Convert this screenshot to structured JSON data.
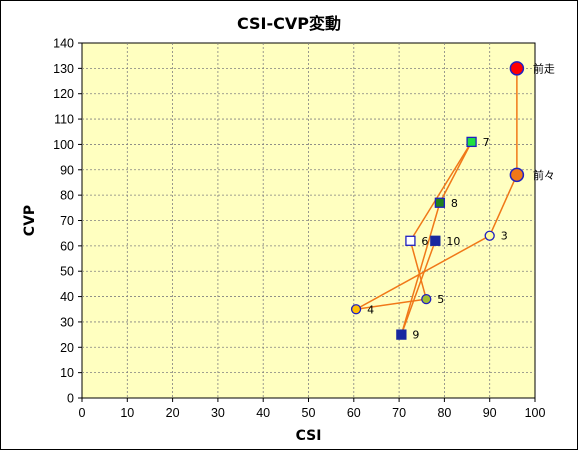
{
  "chart_data": {
    "type": "scatter",
    "title": "CSI-CVP変動",
    "xlabel": "CSI",
    "ylabel": "CVP",
    "xlim": [
      0,
      100
    ],
    "ylim": [
      0,
      140
    ],
    "xticks": [
      0,
      10,
      20,
      30,
      40,
      50,
      60,
      70,
      80,
      90,
      100
    ],
    "yticks": [
      0,
      10,
      20,
      30,
      40,
      50,
      60,
      70,
      80,
      90,
      100,
      110,
      120,
      130,
      140
    ],
    "grid": true,
    "colors": {
      "plot_bg": "#ffffc0",
      "line": "#f07818",
      "grid": "#808080"
    },
    "points": [
      {
        "label": "前走",
        "x": 96,
        "y": 130,
        "marker": "circle-large",
        "fill": "#ff0000",
        "stroke": "#2020c0"
      },
      {
        "label": "前々",
        "x": 96,
        "y": 88,
        "marker": "circle-large",
        "fill": "#f07818",
        "stroke": "#2020c0"
      },
      {
        "label": "3",
        "x": 90,
        "y": 64,
        "marker": "circle",
        "fill": "#ffffa0",
        "stroke": "#2020c0"
      },
      {
        "label": "4",
        "x": 60.5,
        "y": 35,
        "marker": "circle",
        "fill": "#ffc000",
        "stroke": "#2020c0"
      },
      {
        "label": "5",
        "x": 76,
        "y": 39,
        "marker": "circle",
        "fill": "#a0c030",
        "stroke": "#2020c0"
      },
      {
        "label": "6",
        "x": 72.5,
        "y": 62,
        "marker": "square",
        "fill": "#ffffff",
        "stroke": "#2020c0"
      },
      {
        "label": "7",
        "x": 86,
        "y": 101,
        "marker": "square",
        "fill": "#20e040",
        "stroke": "#2020c0"
      },
      {
        "label": "8",
        "x": 79,
        "y": 77,
        "marker": "square",
        "fill": "#208020",
        "stroke": "#2020c0"
      },
      {
        "label": "9",
        "x": 70.5,
        "y": 25,
        "marker": "square",
        "fill": "#1828a0",
        "stroke": "#1828a0"
      },
      {
        "label": "10",
        "x": 78,
        "y": 62,
        "marker": "square",
        "fill": "#1828a0",
        "stroke": "#1828a0"
      }
    ]
  }
}
